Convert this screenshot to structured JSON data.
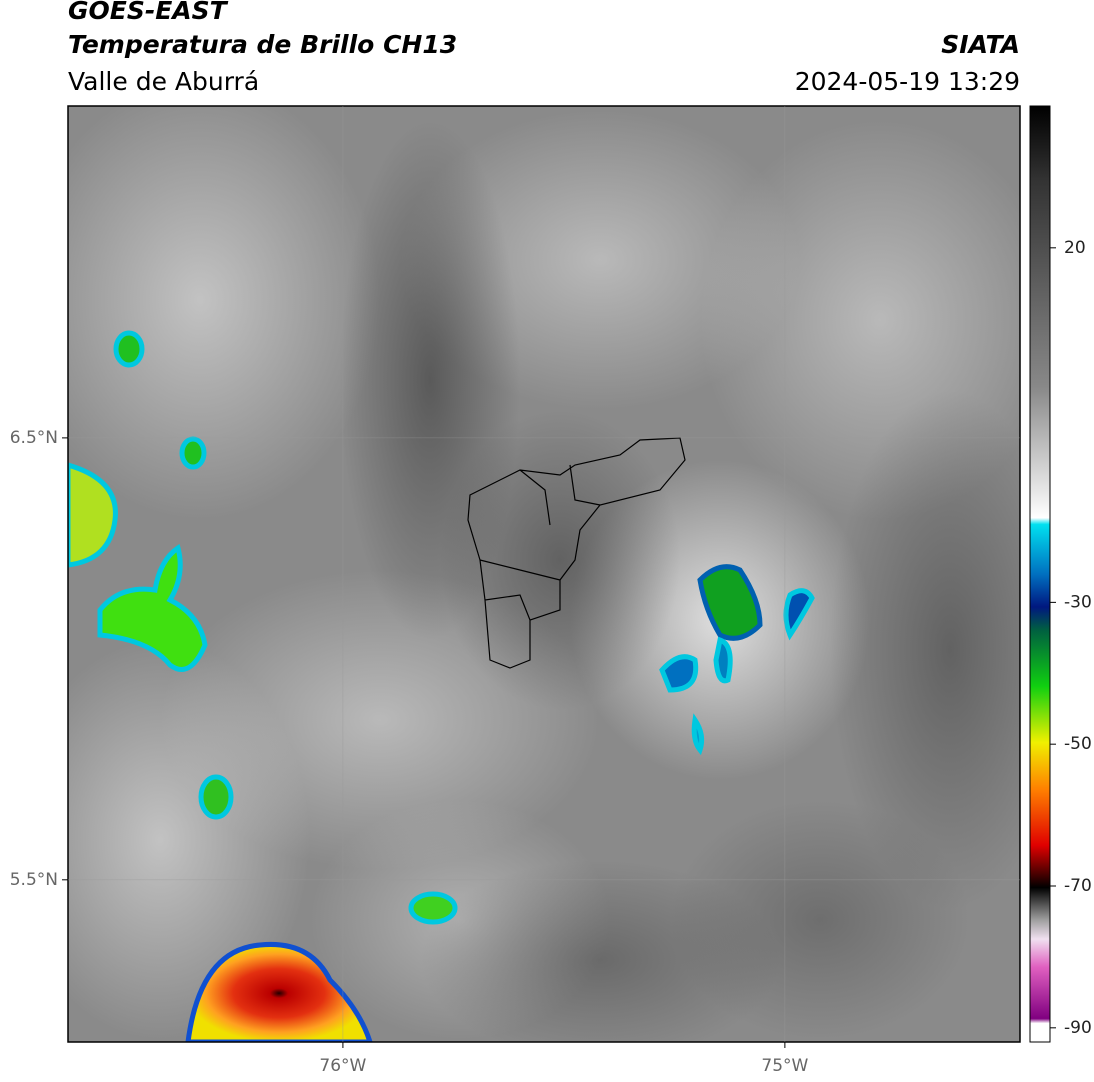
{
  "header": {
    "title": "GOES-EAST",
    "subtitle": "Temperatura de Brillo CH13",
    "region": "Valle de Aburrá",
    "agency": "SIATA",
    "datetime": "2024-05-19 13:29"
  },
  "map": {
    "xlim": [
      -76.622,
      -74.468
    ],
    "ylim": [
      5.133,
      7.251
    ],
    "xticks": [
      {
        "value": -76,
        "label": "76°W"
      },
      {
        "value": -75,
        "label": "75°W"
      }
    ],
    "yticks": [
      {
        "value": 6.5,
        "label": "6.5°N"
      },
      {
        "value": 5.5,
        "label": "5.5°N"
      }
    ],
    "grid": true
  },
  "colorbar": {
    "lim": [
      -92,
      40
    ],
    "ticks": [
      20,
      -30,
      -50,
      -70,
      -90
    ]
  }
}
